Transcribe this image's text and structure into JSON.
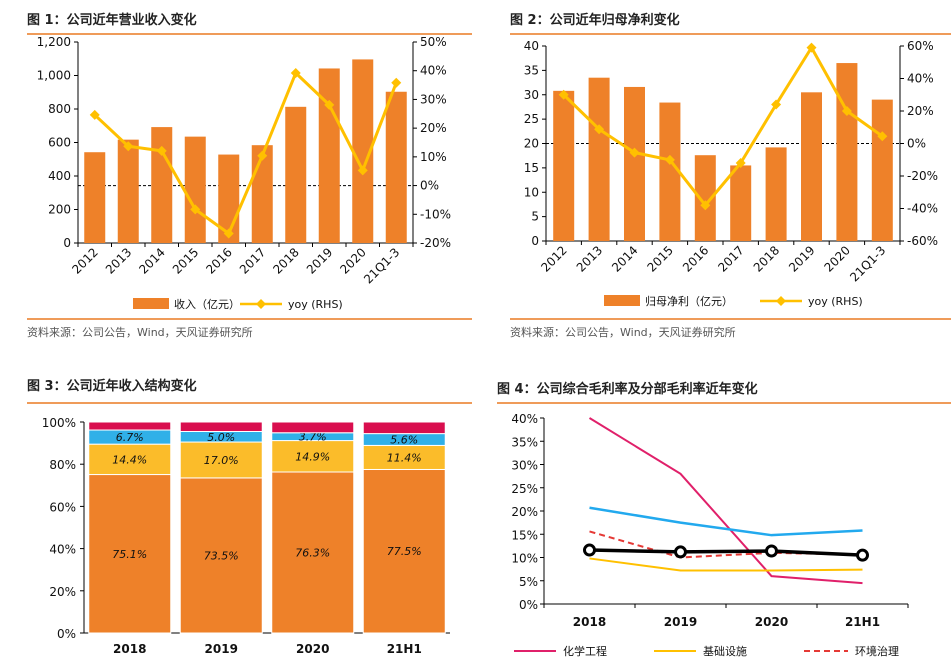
{
  "colors": {
    "title_rule": "#ea7a22",
    "bar": "#ee8129",
    "yoy": "#ffc000",
    "black": "#000000",
    "stack_base": "#ee8129",
    "stack_mid": "#fbbc2a",
    "stack_top": "#30b0e8",
    "stack_cap": "#d90e4e",
    "hua": "#e0206a",
    "jichu": "#ffc000",
    "huanjing": "#e53935",
    "gm_blue": "#22a9ee"
  },
  "chart_data": [
    {
      "id": "fig1",
      "type": "bar",
      "title": "图 1：公司近年营业收入变化",
      "categories": [
        "2012",
        "2013",
        "2014",
        "2015",
        "2016",
        "2017",
        "2018",
        "2019",
        "2020",
        "21Q1-3"
      ],
      "series": [
        {
          "name": "收入（亿元）",
          "type": "bar",
          "axis": "left",
          "values": [
            542,
            617,
            692,
            635,
            528,
            584,
            813,
            1042,
            1096,
            903
          ]
        },
        {
          "name": "yoy (RHS)",
          "type": "line",
          "axis": "right",
          "values": [
            24.6,
            13.7,
            12.1,
            -8.3,
            -16.7,
            10.4,
            39.2,
            28.1,
            5.3,
            35.8
          ]
        }
      ],
      "y_left": {
        "min": 0,
        "max": 1200,
        "step": 200,
        "ticks": [
          "0",
          "200",
          "400",
          "600",
          "800",
          "1,000",
          "1,200"
        ]
      },
      "y_right": {
        "min": -20,
        "max": 50,
        "step": 10,
        "ticks": [
          "-20%",
          "-10%",
          "0%",
          "10%",
          "20%",
          "30%",
          "40%",
          "50%"
        ]
      },
      "zero_line": true,
      "source": "资料来源：公司公告，Wind，天风证券研究所"
    },
    {
      "id": "fig2",
      "type": "bar",
      "title": "图 2：公司近年归母净利变化",
      "categories": [
        "2012",
        "2013",
        "2014",
        "2015",
        "2016",
        "2017",
        "2018",
        "2019",
        "2020",
        "21Q1-3"
      ],
      "series": [
        {
          "name": "归母净利（亿元）",
          "type": "bar",
          "axis": "left",
          "values": [
            30.8,
            33.5,
            31.6,
            28.4,
            17.6,
            15.5,
            19.2,
            30.5,
            36.5,
            29.0
          ]
        },
        {
          "name": "yoy (RHS)",
          "type": "line",
          "axis": "right",
          "values": [
            30.0,
            8.8,
            -5.6,
            -10.1,
            -38.0,
            -12.0,
            24.0,
            59.0,
            20.0,
            4.5
          ]
        }
      ],
      "y_left": {
        "min": 0,
        "max": 40,
        "step": 5,
        "ticks": [
          "0",
          "5",
          "10",
          "15",
          "20",
          "25",
          "30",
          "35",
          "40"
        ]
      },
      "y_right": {
        "min": -60,
        "max": 60,
        "step": 20,
        "ticks": [
          "-60%",
          "-40%",
          "-20%",
          "0%",
          "20%",
          "40%",
          "60%"
        ]
      },
      "zero_line": true,
      "source": "资料来源：公司公告，Wind，天风证券研究所"
    },
    {
      "id": "fig3",
      "type": "bar",
      "stacked": true,
      "title": "图 3：公司近年收入结构变化",
      "categories": [
        "2018",
        "2019",
        "2020",
        "21H1"
      ],
      "series": [
        {
          "name": "base",
          "values": [
            75.1,
            73.5,
            76.3,
            77.5
          ]
        },
        {
          "name": "mid",
          "values": [
            14.4,
            17.0,
            14.9,
            11.4
          ]
        },
        {
          "name": "top",
          "values": [
            6.7,
            5.0,
            3.7,
            5.6
          ]
        },
        {
          "name": "cap",
          "values": [
            3.8,
            4.5,
            5.1,
            5.5
          ]
        }
      ],
      "labels": [
        [
          "75.1%",
          "14.4%",
          "6.7%"
        ],
        [
          "73.5%",
          "17.0%",
          "5.0%"
        ],
        [
          "76.3%",
          "14.9%",
          "3.7%"
        ],
        [
          "77.5%",
          "11.4%",
          "5.6%"
        ]
      ],
      "y": {
        "min": 0,
        "max": 100,
        "step": 20,
        "ticks": [
          "0%",
          "20%",
          "40%",
          "60%",
          "80%",
          "100%"
        ]
      }
    },
    {
      "id": "fig4",
      "type": "line",
      "title": "图 4：公司综合毛利率及分部毛利率近年变化",
      "categories": [
        "2018",
        "2019",
        "2020",
        "21H1"
      ],
      "series": [
        {
          "name": "化学工程",
          "style": "solid",
          "values": [
            40.5,
            28.0,
            6.0,
            4.5
          ]
        },
        {
          "name": "blue",
          "style": "solid",
          "values": [
            20.7,
            17.5,
            14.8,
            15.8
          ]
        },
        {
          "name": "基础设施",
          "style": "solid",
          "values": [
            9.8,
            7.2,
            7.2,
            7.4
          ]
        },
        {
          "name": "环境治理",
          "style": "dashed",
          "values": [
            15.6,
            10.0,
            11.0,
            10.6
          ]
        },
        {
          "name": "综合",
          "style": "marker",
          "values": [
            11.6,
            11.2,
            11.4,
            10.5
          ]
        }
      ],
      "legend": [
        "化学工程",
        "基础设施",
        "环境治理"
      ],
      "y": {
        "min": 0,
        "max": 40,
        "step": 5,
        "ticks": [
          "0%",
          "5%",
          "10%",
          "15%",
          "20%",
          "25%",
          "30%",
          "35%",
          "40%"
        ]
      }
    }
  ]
}
